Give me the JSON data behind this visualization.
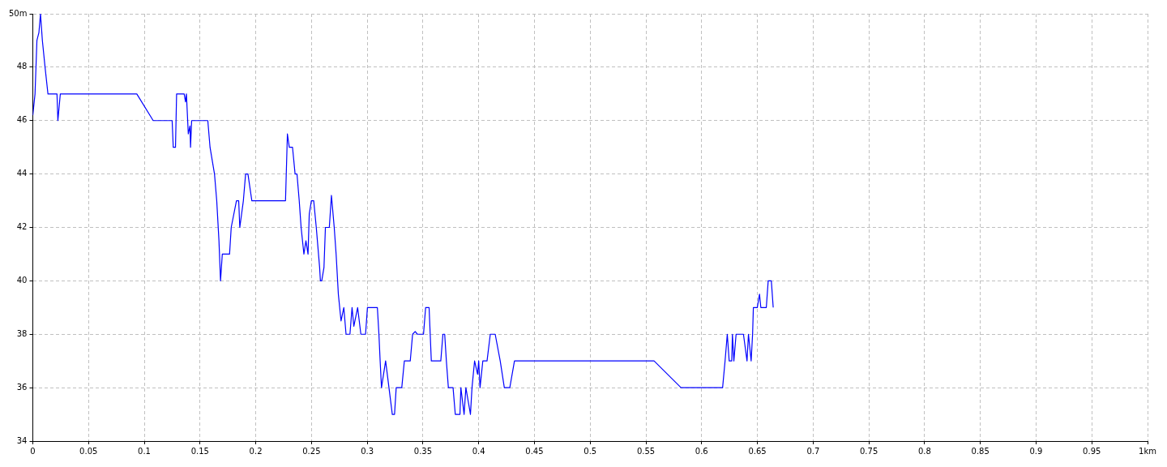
{
  "chart_data": {
    "type": "line",
    "xlim": [
      0,
      1
    ],
    "xticks": [
      0,
      0.05,
      0.1,
      0.15,
      0.2,
      0.25,
      0.3,
      0.35,
      0.4,
      0.45,
      0.5,
      0.55,
      0.6,
      0.65,
      0.7,
      0.75,
      0.8,
      0.85,
      0.9,
      0.95,
      {
        "value": 1,
        "label": "1km"
      }
    ],
    "ylim": [
      34,
      50
    ],
    "yticks": [
      34,
      36,
      38,
      40,
      42,
      44,
      46,
      48,
      {
        "value": 50,
        "label": "50m"
      }
    ],
    "grid": true,
    "legend": false,
    "marker": "none",
    "line_style": "solid",
    "series": [
      {
        "color": "#0000ff",
        "x": [
          0,
          0.002,
          0.0037,
          0.0055,
          0.0069,
          0.0086,
          0.011,
          0.0136,
          0.0217,
          0.0225,
          0.0247,
          0.0933,
          0.108,
          0.125,
          0.126,
          0.128,
          0.129,
          0.1358,
          0.137,
          0.1378,
          0.1395,
          0.141,
          0.1415,
          0.1425,
          0.157,
          0.159,
          0.163,
          0.165,
          0.167,
          0.1684,
          0.17,
          0.1765,
          0.178,
          0.1827,
          0.1847,
          0.1857,
          0.1889,
          0.1909,
          0.193,
          0.1965,
          0.2267,
          0.2284,
          0.2301,
          0.233,
          0.2353,
          0.237,
          0.239,
          0.2407,
          0.2432,
          0.245,
          0.2469,
          0.248,
          0.2499,
          0.252,
          0.2543,
          0.2573,
          0.258,
          0.2592,
          0.2612,
          0.2625,
          0.266,
          0.2679,
          0.2704,
          0.2721,
          0.2741,
          0.2765,
          0.279,
          0.281,
          0.2845,
          0.2864,
          0.288,
          0.2914,
          0.2943,
          0.2985,
          0.3002,
          0.3091,
          0.3105,
          0.3116,
          0.3128,
          0.3165,
          0.318,
          0.3195,
          0.3225,
          0.3245,
          0.326,
          0.331,
          0.3333,
          0.3386,
          0.3407,
          0.343,
          0.345,
          0.3505,
          0.3524,
          0.3555,
          0.3575,
          0.366,
          0.3679,
          0.3695,
          0.371,
          0.3728,
          0.377,
          0.379,
          0.3832,
          0.384,
          0.3869,
          0.3885,
          0.3926,
          0.394,
          0.3963,
          0.399,
          0.4,
          0.4012,
          0.4037,
          0.4075,
          0.4104,
          0.4148,
          0.4193,
          0.423,
          0.4279,
          0.4321,
          0.5573,
          0.5815,
          0.6188,
          0.621,
          0.623,
          0.6247,
          0.627,
          0.6276,
          0.6289,
          0.6309,
          0.6375,
          0.6407,
          0.642,
          0.6444,
          0.6457,
          0.6464,
          0.6499,
          0.6519,
          0.6531,
          0.658,
          0.6597,
          0.6625,
          0.6642
        ],
        "values": [
          46.2,
          47,
          49,
          49.3,
          50,
          49,
          48,
          47,
          47,
          46,
          47,
          47,
          46,
          46,
          45,
          45,
          47,
          47,
          46.7,
          47,
          45.5,
          45.8,
          45,
          46,
          46,
          45,
          44,
          43,
          41.5,
          40,
          41,
          41,
          42,
          43,
          43,
          42,
          43,
          44,
          44,
          43,
          43,
          45.5,
          45,
          45,
          44,
          44,
          43,
          42,
          41,
          41.5,
          41,
          42.5,
          43,
          43,
          42,
          40.5,
          40,
          40,
          40.5,
          42,
          42,
          43.2,
          42,
          41,
          39.5,
          38.5,
          39,
          38,
          38,
          39,
          38.3,
          39,
          38,
          38,
          39,
          39,
          38,
          37,
          36,
          37,
          36.5,
          36,
          35,
          35,
          36,
          36,
          37,
          37,
          38,
          38.1,
          38,
          38,
          39,
          39,
          37,
          37,
          38,
          38,
          37,
          36,
          36,
          35,
          35,
          36,
          35,
          36,
          35,
          36,
          37,
          36.5,
          37,
          36,
          37,
          37,
          38,
          38,
          37,
          36,
          36,
          37,
          37,
          36,
          36,
          37,
          38,
          37,
          37,
          38,
          37,
          38,
          38,
          37,
          38,
          37,
          38,
          39,
          39,
          39.5,
          39,
          39,
          40,
          40,
          39
        ]
      }
    ]
  }
}
